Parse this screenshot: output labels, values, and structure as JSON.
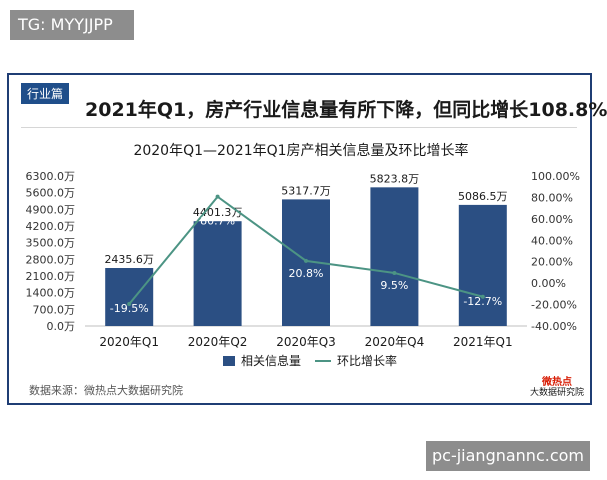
{
  "watermarks": {
    "top_left": "TG: MYYJJPP",
    "bottom_right": "pc-jiangnannc.com"
  },
  "header": {
    "section_tag": "行业篇",
    "headline": "2021年Q1，房产行业信息量有所下降，但同比增长108.8%"
  },
  "footer": {
    "source": "数据来源：微热点大数据研究院",
    "logo_line1": "微热点",
    "logo_line2": "大数据研究院"
  },
  "colors": {
    "bar": "#2b4f83",
    "line": "#4c9484",
    "frame": "#1f3d74",
    "tag": "#1f4e8a"
  },
  "chart_data": {
    "type": "bar",
    "title": "2020年Q1—2021年Q1房产相关信息量及环比增长率",
    "categories": [
      "2020年Q1",
      "2020年Q2",
      "2020年Q3",
      "2020年Q4",
      "2021年Q1"
    ],
    "series": [
      {
        "name": "相关信息量",
        "type": "bar",
        "axis": "left",
        "values": [
          2435.6,
          4401.3,
          5317.7,
          5823.8,
          5086.5
        ],
        "labels": [
          "2435.6万",
          "4401.3万",
          "5317.7万",
          "5823.8万",
          "5086.5万"
        ]
      },
      {
        "name": "环比增长率",
        "type": "line",
        "axis": "right",
        "values": [
          -19.5,
          80.7,
          20.8,
          9.5,
          -12.7
        ],
        "labels": [
          "-19.5%",
          "80.7%",
          "20.8%",
          "9.5%",
          "-12.7%"
        ]
      }
    ],
    "y_left": {
      "ylim": [
        0,
        6300
      ],
      "ticks": [
        0,
        700,
        1400,
        2100,
        2800,
        3500,
        4200,
        4900,
        5600,
        6300
      ],
      "tick_labels": [
        "0.0万",
        "700.0万",
        "1400.0万",
        "2100.0万",
        "2800.0万",
        "3500.0万",
        "4200.0万",
        "4900.0万",
        "5600.0万",
        "6300.0万"
      ]
    },
    "y_right": {
      "ylim": [
        -40,
        100
      ],
      "ticks": [
        -40,
        -20,
        0,
        20,
        40,
        60,
        80,
        100
      ],
      "tick_labels": [
        "-40.00%",
        "-20.00%",
        "0.00%",
        "20.00%",
        "40.00%",
        "60.00%",
        "80.00%",
        "100.00%"
      ]
    },
    "grid": false,
    "legend_position": "bottom"
  }
}
